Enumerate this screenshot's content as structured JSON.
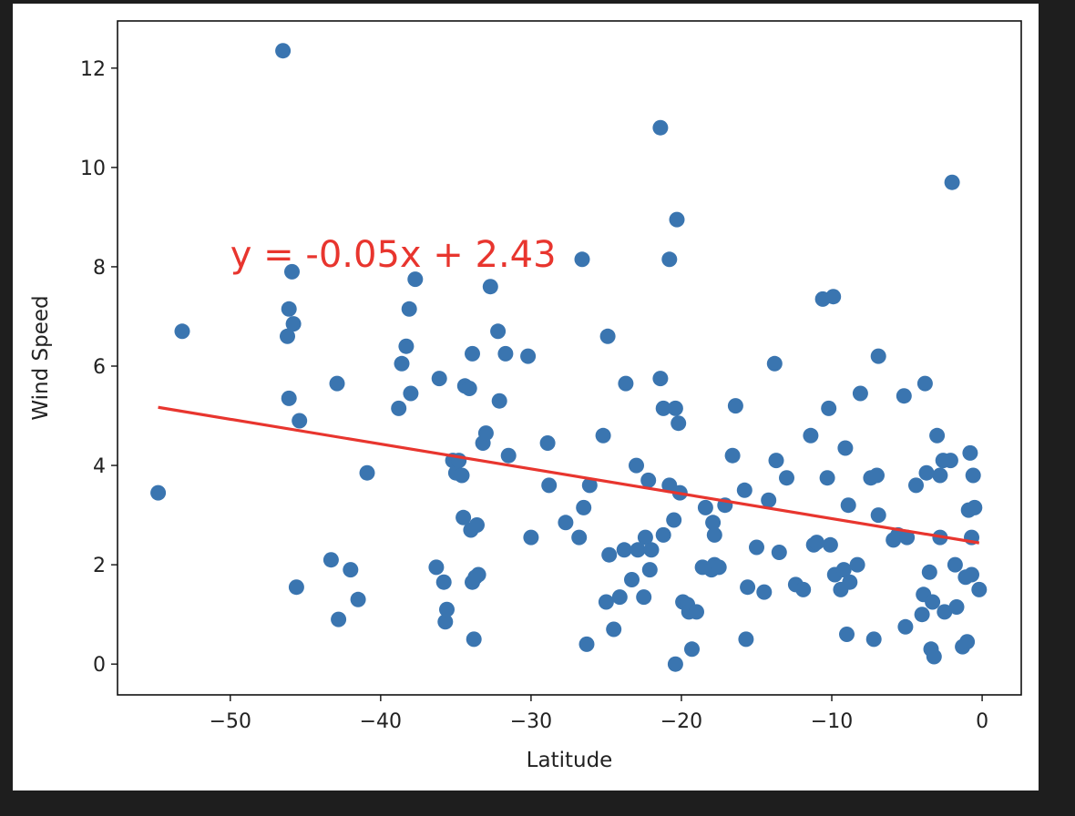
{
  "chart_data": {
    "type": "scatter",
    "xlabel": "Latitude",
    "ylabel": "Wind Speed",
    "xlim": [
      -57.5,
      2.6
    ],
    "ylim": [
      -0.62,
      12.95
    ],
    "xticks": [
      -50,
      -40,
      -30,
      -20,
      -10,
      0
    ],
    "xtick_labels": [
      "−50",
      "−40",
      "−30",
      "−20",
      "−10",
      "0"
    ],
    "yticks": [
      0,
      2,
      4,
      6,
      8,
      10,
      12
    ],
    "ytick_labels": [
      "0",
      "2",
      "4",
      "6",
      "8",
      "10",
      "12"
    ],
    "grid": false,
    "colors": {
      "points": "#3a75b0",
      "regression": "#e8352e"
    },
    "regression": {
      "slope": -0.05,
      "intercept": 2.43,
      "x_range": [
        -54.8,
        -0.2
      ],
      "equation_label": "y = -0.05x + 2.43",
      "label_position_data": [
        -50,
        8
      ]
    },
    "points": [
      [
        -54.8,
        3.45
      ],
      [
        -53.2,
        6.7
      ],
      [
        -46.5,
        12.35
      ],
      [
        -46.2,
        6.6
      ],
      [
        -46.1,
        7.15
      ],
      [
        -46.1,
        5.35
      ],
      [
        -45.9,
        7.9
      ],
      [
        -45.8,
        6.85
      ],
      [
        -45.6,
        1.55
      ],
      [
        -45.4,
        4.9
      ],
      [
        -43.3,
        2.1
      ],
      [
        -42.9,
        5.65
      ],
      [
        -42.8,
        0.9
      ],
      [
        -42.0,
        1.9
      ],
      [
        -41.5,
        1.3
      ],
      [
        -40.9,
        3.85
      ],
      [
        -38.8,
        5.15
      ],
      [
        -38.6,
        6.05
      ],
      [
        -38.3,
        6.4
      ],
      [
        -38.1,
        7.15
      ],
      [
        -38.0,
        5.45
      ],
      [
        -37.7,
        7.75
      ],
      [
        -36.3,
        1.95
      ],
      [
        -36.1,
        5.75
      ],
      [
        -35.8,
        1.65
      ],
      [
        -35.7,
        0.85
      ],
      [
        -35.6,
        1.1
      ],
      [
        -35.2,
        4.1
      ],
      [
        -35.0,
        3.85
      ],
      [
        -34.8,
        4.1
      ],
      [
        -34.6,
        3.8
      ],
      [
        -34.5,
        2.95
      ],
      [
        -34.4,
        5.6
      ],
      [
        -34.1,
        5.55
      ],
      [
        -34.0,
        2.7
      ],
      [
        -33.9,
        6.25
      ],
      [
        -33.9,
        1.65
      ],
      [
        -33.8,
        0.5
      ],
      [
        -33.7,
        1.75
      ],
      [
        -33.6,
        2.8
      ],
      [
        -33.5,
        1.8
      ],
      [
        -33.2,
        4.45
      ],
      [
        -33.0,
        4.65
      ],
      [
        -32.7,
        7.6
      ],
      [
        -32.2,
        6.7
      ],
      [
        -32.1,
        5.3
      ],
      [
        -31.7,
        6.25
      ],
      [
        -31.5,
        4.2
      ],
      [
        -30.2,
        6.2
      ],
      [
        -30.0,
        2.55
      ],
      [
        -28.9,
        4.45
      ],
      [
        -28.8,
        3.6
      ],
      [
        -27.7,
        2.85
      ],
      [
        -26.8,
        2.55
      ],
      [
        -26.6,
        8.15
      ],
      [
        -26.5,
        3.15
      ],
      [
        -26.3,
        0.4
      ],
      [
        -26.1,
        3.6
      ],
      [
        -25.2,
        4.6
      ],
      [
        -25.0,
        1.25
      ],
      [
        -24.9,
        6.6
      ],
      [
        -24.8,
        2.2
      ],
      [
        -24.5,
        0.7
      ],
      [
        -24.1,
        1.35
      ],
      [
        -23.8,
        2.3
      ],
      [
        -23.7,
        5.65
      ],
      [
        -23.3,
        1.7
      ],
      [
        -23.0,
        4.0
      ],
      [
        -22.9,
        2.3
      ],
      [
        -22.5,
        1.35
      ],
      [
        -22.4,
        2.55
      ],
      [
        -22.2,
        3.7
      ],
      [
        -22.1,
        1.9
      ],
      [
        -22.0,
        2.3
      ],
      [
        -21.4,
        10.8
      ],
      [
        -21.4,
        5.75
      ],
      [
        -21.2,
        5.15
      ],
      [
        -21.2,
        2.6
      ],
      [
        -20.8,
        3.6
      ],
      [
        -20.8,
        8.15
      ],
      [
        -20.5,
        2.9
      ],
      [
        -20.4,
        5.15
      ],
      [
        -20.4,
        0.0
      ],
      [
        -20.3,
        8.95
      ],
      [
        -20.2,
        4.85
      ],
      [
        -20.1,
        3.45
      ],
      [
        -19.9,
        1.25
      ],
      [
        -19.6,
        1.2
      ],
      [
        -19.5,
        1.05
      ],
      [
        -19.3,
        0.3
      ],
      [
        -19.0,
        1.05
      ],
      [
        -18.6,
        1.95
      ],
      [
        -18.4,
        3.15
      ],
      [
        -18.0,
        1.9
      ],
      [
        -17.9,
        2.85
      ],
      [
        -17.8,
        2.6
      ],
      [
        -17.8,
        2.0
      ],
      [
        -17.5,
        1.95
      ],
      [
        -17.1,
        3.2
      ],
      [
        -16.6,
        4.2
      ],
      [
        -16.4,
        5.2
      ],
      [
        -15.8,
        3.5
      ],
      [
        -15.7,
        0.5
      ],
      [
        -15.6,
        1.55
      ],
      [
        -15.0,
        2.35
      ],
      [
        -14.5,
        1.45
      ],
      [
        -14.2,
        3.3
      ],
      [
        -13.8,
        6.05
      ],
      [
        -13.7,
        4.1
      ],
      [
        -13.5,
        2.25
      ],
      [
        -13.0,
        3.75
      ],
      [
        -12.4,
        1.6
      ],
      [
        -11.9,
        1.5
      ],
      [
        -11.4,
        4.6
      ],
      [
        -11.2,
        2.4
      ],
      [
        -11.0,
        2.45
      ],
      [
        -10.6,
        7.35
      ],
      [
        -10.3,
        3.75
      ],
      [
        -10.2,
        5.15
      ],
      [
        -10.1,
        2.4
      ],
      [
        -9.9,
        7.4
      ],
      [
        -9.8,
        1.8
      ],
      [
        -9.4,
        1.5
      ],
      [
        -9.2,
        1.9
      ],
      [
        -9.1,
        4.35
      ],
      [
        -9.0,
        0.6
      ],
      [
        -8.9,
        3.2
      ],
      [
        -8.8,
        1.65
      ],
      [
        -8.3,
        2.0
      ],
      [
        -8.1,
        5.45
      ],
      [
        -7.4,
        3.75
      ],
      [
        -7.2,
        0.5
      ],
      [
        -7.0,
        3.8
      ],
      [
        -6.9,
        6.2
      ],
      [
        -6.9,
        3.0
      ],
      [
        -5.9,
        2.5
      ],
      [
        -5.6,
        2.6
      ],
      [
        -5.2,
        5.4
      ],
      [
        -5.1,
        0.75
      ],
      [
        -5.0,
        2.55
      ],
      [
        -4.4,
        3.6
      ],
      [
        -4.0,
        1.0
      ],
      [
        -3.9,
        1.4
      ],
      [
        -3.8,
        5.65
      ],
      [
        -3.7,
        3.85
      ],
      [
        -3.5,
        1.85
      ],
      [
        -3.4,
        0.3
      ],
      [
        -3.3,
        1.25
      ],
      [
        -3.2,
        0.15
      ],
      [
        -3.0,
        4.6
      ],
      [
        -2.8,
        3.8
      ],
      [
        -2.8,
        2.55
      ],
      [
        -2.6,
        4.1
      ],
      [
        -2.5,
        1.05
      ],
      [
        -2.1,
        4.1
      ],
      [
        -2.0,
        9.7
      ],
      [
        -1.8,
        2.0
      ],
      [
        -1.7,
        1.15
      ],
      [
        -1.3,
        0.35
      ],
      [
        -1.1,
        1.75
      ],
      [
        -1.0,
        0.45
      ],
      [
        -0.9,
        3.1
      ],
      [
        -0.8,
        4.25
      ],
      [
        -0.7,
        2.55
      ],
      [
        -0.7,
        1.8
      ],
      [
        -0.6,
        3.8
      ],
      [
        -0.5,
        3.15
      ],
      [
        -0.2,
        1.5
      ]
    ]
  }
}
